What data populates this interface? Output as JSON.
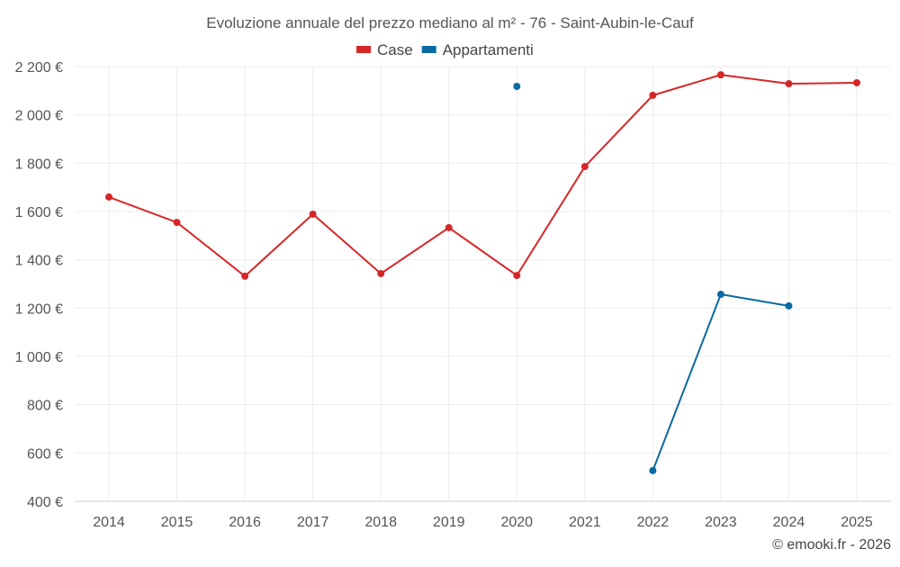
{
  "chart_data": {
    "type": "line",
    "title": "Evoluzione annuale del prezzo mediano al m² - 76 - Saint-Aubin-le-Cauf",
    "xlabel": "",
    "ylabel": "",
    "x": [
      "2014",
      "2015",
      "2016",
      "2017",
      "2018",
      "2019",
      "2020",
      "2021",
      "2022",
      "2023",
      "2024",
      "2025"
    ],
    "ylim": [
      400,
      2200
    ],
    "yticks": [
      400,
      600,
      800,
      1000,
      1200,
      1400,
      1600,
      1800,
      2000,
      2200
    ],
    "ytick_labels": [
      "400 €",
      "600 €",
      "800 €",
      "1 000 €",
      "1 200 €",
      "1 400 €",
      "1 600 €",
      "1 800 €",
      "2 000 €",
      "2 200 €"
    ],
    "grid": true,
    "legend_position": "top-center",
    "series": [
      {
        "name": "Case",
        "color": "#d62728",
        "values": [
          1660,
          1555,
          1332,
          1589,
          1343,
          1533,
          1335,
          1786,
          2081,
          2166,
          2129,
          2133
        ]
      },
      {
        "name": "Appartamenti",
        "color": "#0a6aa1",
        "values": [
          null,
          null,
          null,
          null,
          null,
          null,
          2118,
          null,
          527,
          1257,
          1209,
          null
        ]
      }
    ],
    "credit": "© emooki.fr - 2026"
  }
}
